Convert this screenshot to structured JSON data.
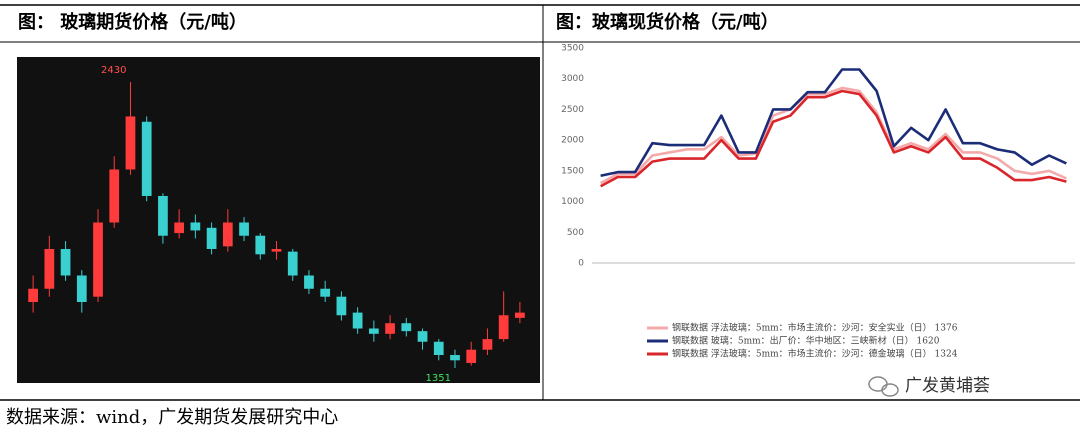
{
  "header": {
    "left_title": "图：  玻璃期货价格（元/吨）",
    "right_title": "图：玻璃现货价格（元/吨）"
  },
  "source": "数据来源：wind，广发期货发展研究中心",
  "watermark": "广发黄埔荟",
  "chart_data": [
    {
      "type": "candlestick",
      "up_color": "#ff3b3b",
      "down_color": "#3ad0d0",
      "background": "#111111",
      "categories": [
        null,
        null,
        null,
        null,
        null,
        null,
        null,
        null,
        null,
        null,
        null,
        null,
        null,
        null,
        null,
        null,
        null,
        null,
        null,
        null,
        null,
        null,
        null,
        null,
        null,
        null,
        null,
        null,
        null,
        null,
        null
      ],
      "open": [
        1600,
        1650,
        1800,
        1700,
        1620,
        1900,
        2100,
        2280,
        2000,
        1860,
        1900,
        1880,
        1810,
        1900,
        1850,
        1790,
        1790,
        1700,
        1650,
        1620,
        1560,
        1500,
        1480,
        1520,
        1490,
        1450,
        1400,
        1370,
        1420,
        1460,
        1540
      ],
      "high": [
        1700,
        1850,
        1830,
        1720,
        1950,
        2150,
        2430,
        2300,
        2010,
        1950,
        1930,
        1900,
        1950,
        1920,
        1860,
        1830,
        1800,
        1720,
        1680,
        1640,
        1580,
        1530,
        1550,
        1540,
        1500,
        1460,
        1420,
        1450,
        1500,
        1640,
        1600
      ],
      "low": [
        1560,
        1620,
        1680,
        1560,
        1600,
        1880,
        2080,
        1980,
        1820,
        1840,
        1840,
        1780,
        1790,
        1830,
        1760,
        1760,
        1680,
        1630,
        1600,
        1530,
        1480,
        1450,
        1460,
        1470,
        1420,
        1380,
        1351,
        1360,
        1400,
        1450,
        1520
      ],
      "close": [
        1650,
        1800,
        1700,
        1600,
        1900,
        2100,
        2300,
        2000,
        1850,
        1900,
        1870,
        1800,
        1900,
        1850,
        1780,
        1800,
        1700,
        1650,
        1620,
        1550,
        1500,
        1480,
        1520,
        1490,
        1450,
        1400,
        1380,
        1420,
        1460,
        1550,
        1560
      ],
      "annotate_high_index": 6,
      "annotate_low_index": 26
    },
    {
      "type": "line",
      "ylim": [
        0,
        3500
      ],
      "yticks": [
        0,
        500,
        1000,
        1500,
        2000,
        2500,
        3000,
        3500
      ],
      "categories": [
        null,
        null,
        null,
        null,
        null,
        null,
        null,
        null,
        null,
        null,
        null,
        null,
        null,
        null,
        null,
        null,
        null,
        null,
        null,
        null,
        null,
        null,
        null,
        null,
        null,
        null,
        null,
        null
      ],
      "series": [
        {
          "name": "钢联数据 浮法玻璃：5mm：市场主流价：沙河：安全实业（日） 1376",
          "color": "#f4a9ab",
          "values": [
            1300,
            1450,
            1450,
            1750,
            1800,
            1850,
            1850,
            2050,
            1750,
            1780,
            2400,
            2500,
            2750,
            2750,
            2850,
            2800,
            2450,
            1850,
            1950,
            1850,
            2100,
            1800,
            1800,
            1700,
            1500,
            1450,
            1500,
            1376
          ]
        },
        {
          "name": "钢联数据 玻璃：5mm：出厂价：华中地区：三峡新材（日） 1620",
          "color": "#1c2d78",
          "values": [
            1420,
            1480,
            1480,
            1950,
            1920,
            1920,
            1920,
            2400,
            1800,
            1800,
            2500,
            2500,
            2780,
            2780,
            3150,
            3150,
            2800,
            1900,
            2200,
            2000,
            2500,
            1950,
            1950,
            1850,
            1800,
            1600,
            1750,
            1620
          ]
        },
        {
          "name": "钢联数据 浮法玻璃：5mm：市场主流价：沙河：德金玻璃（日） 1324",
          "color": "#d9262b",
          "values": [
            1250,
            1400,
            1400,
            1650,
            1700,
            1700,
            1700,
            2000,
            1700,
            1700,
            2300,
            2400,
            2700,
            2700,
            2800,
            2750,
            2400,
            1800,
            1900,
            1800,
            2050,
            1700,
            1700,
            1550,
            1350,
            1350,
            1400,
            1324
          ]
        }
      ]
    }
  ]
}
